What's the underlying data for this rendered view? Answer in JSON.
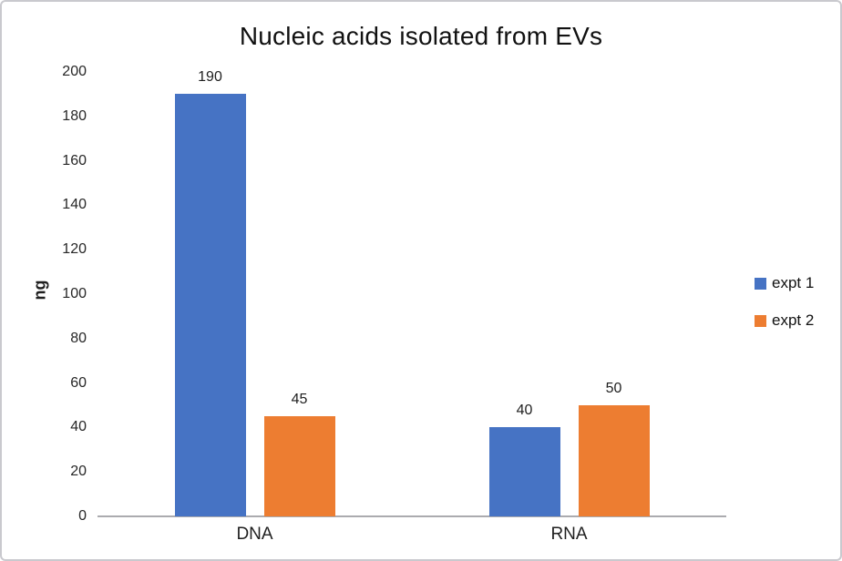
{
  "chart_data": {
    "type": "bar",
    "title": "Nucleic acids isolated from EVs",
    "ylabel": "ng",
    "xlabel": "",
    "categories": [
      "DNA",
      "RNA"
    ],
    "series": [
      {
        "name": "expt 1",
        "color": "#4673c4",
        "values": [
          190,
          40
        ]
      },
      {
        "name": "expt 2",
        "color": "#ed7d31",
        "values": [
          45,
          50
        ]
      }
    ],
    "ylim": [
      0,
      200
    ],
    "yticks": [
      0,
      20,
      40,
      60,
      80,
      100,
      120,
      140,
      160,
      180,
      200
    ],
    "grid": false,
    "data_labels": [
      [
        "190",
        "40"
      ],
      [
        "45",
        "50"
      ]
    ],
    "legend_position": "right",
    "axis_line_color": "#ababaf",
    "background": "#ffffff"
  }
}
